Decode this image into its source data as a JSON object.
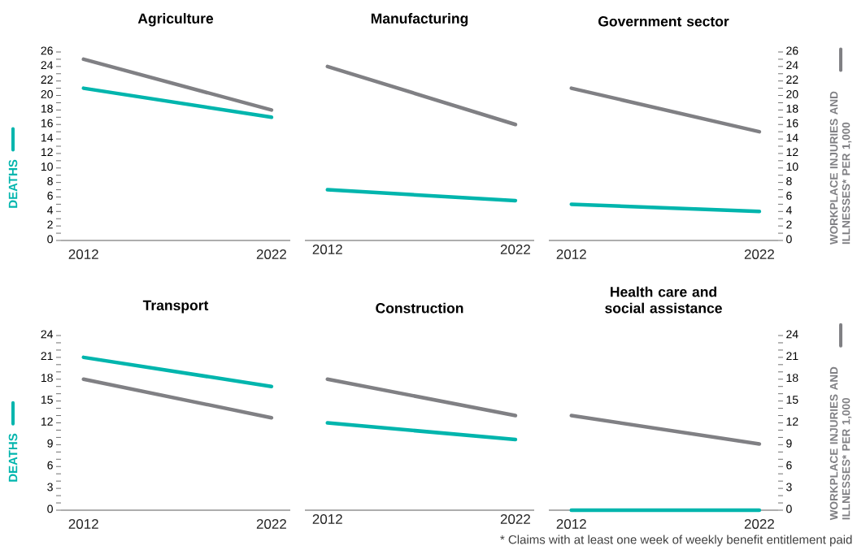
{
  "chart_data": [
    {
      "type": "line",
      "title": "Agriculture",
      "categories": [
        "2012",
        "2022"
      ],
      "ylabel": "DEATHS",
      "ylim": [
        0,
        26
      ],
      "yticks": [
        0,
        2,
        4,
        6,
        8,
        10,
        12,
        14,
        16,
        18,
        20,
        22,
        24,
        26
      ],
      "series": [
        {
          "color": "#00b5ad",
          "values": [
            21,
            17
          ]
        },
        {
          "color": "#808084",
          "values": [
            25,
            18
          ]
        }
      ]
    },
    {
      "type": "line",
      "title": "Manufacturing",
      "categories": [
        "2012",
        "2022"
      ],
      "ylim": [
        0,
        26
      ],
      "yticks": [
        0,
        2,
        4,
        6,
        8,
        10,
        12,
        14,
        16,
        18,
        20,
        22,
        24,
        26
      ],
      "tick_labels": "x",
      "series": [
        {
          "color": "#00b5ad",
          "values": [
            7,
            5.5
          ]
        },
        {
          "color": "#808084",
          "values": [
            24,
            16
          ]
        }
      ]
    },
    {
      "type": "line",
      "title": "Government sector",
      "categories": [
        "2012",
        "2022"
      ],
      "y2label": "WORKPLACE INJURIES AND ILLNESSES* PER 1,000",
      "ylim": [
        0,
        26
      ],
      "yticks": [
        0,
        2,
        4,
        6,
        8,
        10,
        12,
        14,
        16,
        18,
        20,
        22,
        24,
        26
      ],
      "series": [
        {
          "color": "#00b5ad",
          "values": [
            5,
            4
          ]
        },
        {
          "color": "#808084",
          "values": [
            21,
            15
          ]
        }
      ]
    },
    {
      "type": "line",
      "title": "Transport",
      "categories": [
        "2012",
        "2022"
      ],
      "ylabel": "DEATHS",
      "ylim": [
        0,
        24
      ],
      "yticks": [
        0,
        3,
        6,
        9,
        12,
        15,
        18,
        21,
        24
      ],
      "series": [
        {
          "color": "#00b5ad",
          "values": [
            21,
            17
          ]
        },
        {
          "color": "#808084",
          "values": [
            18,
            12.7
          ]
        }
      ]
    },
    {
      "type": "line",
      "title": "Construction",
      "categories": [
        "2012",
        "2022"
      ],
      "ylim": [
        0,
        24
      ],
      "yticks": [
        0,
        3,
        6,
        9,
        12,
        15,
        18,
        21,
        24
      ],
      "tick_labels": "x",
      "series": [
        {
          "color": "#00b5ad",
          "values": [
            12,
            9.7
          ]
        },
        {
          "color": "#808084",
          "values": [
            18,
            13
          ]
        }
      ]
    },
    {
      "type": "line",
      "title": "Health care and social assistance",
      "categories": [
        "2012",
        "2022"
      ],
      "ylim": [
        0,
        24
      ],
      "yticks": [
        0,
        3,
        6,
        9,
        12,
        15,
        18,
        21,
        24
      ],
      "y2label": "WORKPLACE INJURIES AND ILLNESSES* PER 1,000",
      "annotations": [
        "* Claims with at least one week of weekly benefit entitlement paid"
      ],
      "series": [
        {
          "color": "#00b5ad",
          "values": [
            0,
            0
          ]
        },
        {
          "color": "#808084",
          "values": [
            13,
            9.1
          ]
        }
      ]
    }
  ]
}
